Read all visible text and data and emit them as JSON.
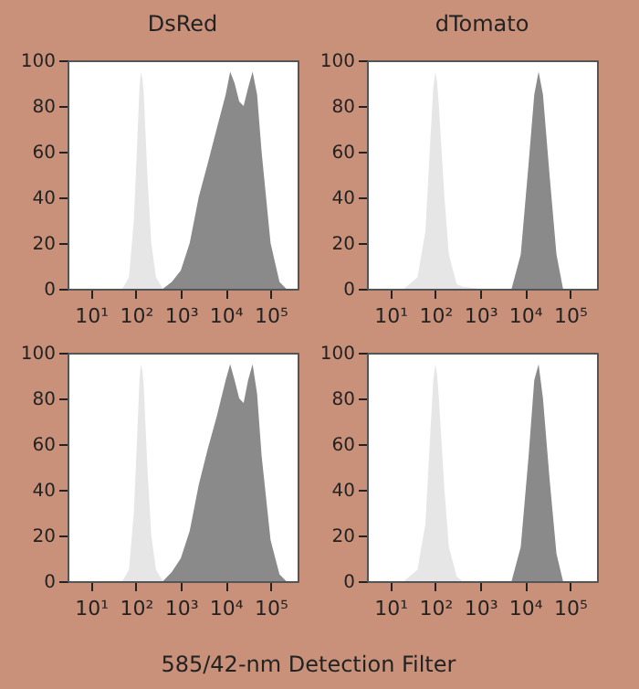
{
  "chart_data": [
    {
      "type": "area",
      "title": "DsRed",
      "log": "x",
      "xlim": [
        3,
        400000
      ],
      "xticks": [
        {
          "value": 10,
          "label": "10¹"
        },
        {
          "value": 100,
          "label": "10²"
        },
        {
          "value": 1000,
          "label": "10³"
        },
        {
          "value": 10000,
          "label": "10⁴"
        },
        {
          "value": 100000,
          "label": "10⁵"
        }
      ],
      "ylim": [
        0,
        100
      ],
      "yticks": [
        0,
        20,
        40,
        60,
        80,
        100
      ],
      "series": [
        {
          "color": "#e6e6e6",
          "x": [
            50,
            70,
            90,
            110,
            120,
            130,
            140,
            150,
            180,
            220,
            280,
            400
          ],
          "values": [
            0,
            5,
            30,
            70,
            88,
            95,
            92,
            85,
            50,
            20,
            5,
            0
          ]
        },
        {
          "color": "#8a8a8a",
          "x": [
            400,
            630,
            1000,
            1580,
            2500,
            4000,
            6300,
            10000,
            12600,
            15800,
            20000,
            25100,
            31600,
            39800,
            50100,
            63100,
            100000,
            158000,
            224000
          ],
          "values": [
            0,
            3,
            8,
            20,
            40,
            55,
            70,
            85,
            95,
            90,
            82,
            80,
            88,
            95,
            85,
            60,
            20,
            3,
            0
          ]
        }
      ]
    },
    {
      "type": "area",
      "title": "dTomato",
      "log": "x",
      "xlim": [
        3,
        400000
      ],
      "xticks": [
        {
          "value": 10,
          "label": "10¹"
        },
        {
          "value": 100,
          "label": "10²"
        },
        {
          "value": 1000,
          "label": "10³"
        },
        {
          "value": 10000,
          "label": "10⁴"
        },
        {
          "value": 100000,
          "label": "10⁵"
        }
      ],
      "ylim": [
        0,
        100
      ],
      "yticks": [
        0,
        20,
        40,
        60,
        80,
        100
      ],
      "series": [
        {
          "color": "#e6e6e6",
          "x": [
            20,
            40,
            60,
            80,
            90,
            100,
            110,
            120,
            160,
            200,
            300,
            400,
            1000
          ],
          "values": [
            0,
            5,
            25,
            70,
            88,
            95,
            90,
            80,
            40,
            15,
            2,
            1,
            0
          ]
        },
        {
          "color": "#8a8a8a",
          "x": [
            5000,
            8000,
            12000,
            16000,
            20000,
            25000,
            35000,
            50000,
            70000
          ],
          "values": [
            0,
            15,
            55,
            85,
            95,
            85,
            50,
            15,
            0
          ]
        }
      ]
    },
    {
      "type": "area",
      "xlabel": "585/42-nm Detection Filter",
      "log": "x",
      "xlim": [
        3,
        400000
      ],
      "xticks": [
        {
          "value": 10,
          "label": "10¹"
        },
        {
          "value": 100,
          "label": "10²"
        },
        {
          "value": 1000,
          "label": "10³"
        },
        {
          "value": 10000,
          "label": "10⁴"
        },
        {
          "value": 100000,
          "label": "10⁵"
        }
      ],
      "ylim": [
        0,
        100
      ],
      "yticks": [
        0,
        20,
        40,
        60,
        80,
        100
      ],
      "series": [
        {
          "color": "#e6e6e6",
          "x": [
            50,
            70,
            90,
            110,
            120,
            130,
            140,
            150,
            180,
            220,
            280,
            400
          ],
          "values": [
            0,
            5,
            30,
            70,
            88,
            95,
            92,
            85,
            50,
            20,
            5,
            0
          ]
        },
        {
          "color": "#8a8a8a",
          "x": [
            400,
            630,
            1000,
            1580,
            2500,
            4000,
            6300,
            10000,
            12600,
            15800,
            20000,
            25100,
            31600,
            39800,
            50100,
            63100,
            100000,
            158000,
            224000
          ],
          "values": [
            0,
            4,
            10,
            22,
            42,
            58,
            72,
            88,
            95,
            88,
            80,
            78,
            88,
            95,
            82,
            55,
            18,
            3,
            0
          ]
        }
      ]
    },
    {
      "type": "area",
      "log": "x",
      "xlim": [
        3,
        400000
      ],
      "xticks": [
        {
          "value": 10,
          "label": "10¹"
        },
        {
          "value": 100,
          "label": "10²"
        },
        {
          "value": 1000,
          "label": "10³"
        },
        {
          "value": 10000,
          "label": "10⁴"
        },
        {
          "value": 100000,
          "label": "10⁵"
        }
      ],
      "ylim": [
        0,
        100
      ],
      "yticks": [
        0,
        20,
        40,
        60,
        80,
        100
      ],
      "series": [
        {
          "color": "#e6e6e6",
          "x": [
            20,
            40,
            60,
            80,
            90,
            100,
            110,
            120,
            160,
            200,
            300,
            400
          ],
          "values": [
            0,
            5,
            25,
            70,
            88,
            95,
            90,
            80,
            40,
            15,
            2,
            0
          ]
        },
        {
          "color": "#8a8a8a",
          "x": [
            5000,
            8000,
            12000,
            16000,
            20000,
            25000,
            35000,
            50000,
            70000
          ],
          "values": [
            0,
            15,
            55,
            88,
            95,
            80,
            45,
            12,
            0
          ]
        }
      ]
    }
  ]
}
